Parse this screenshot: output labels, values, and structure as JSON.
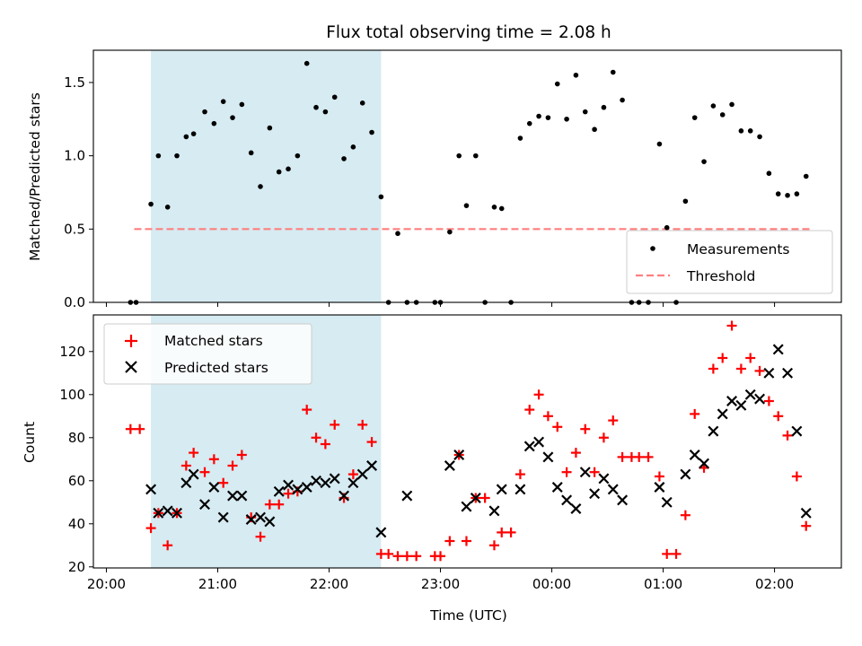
{
  "chart_data": [
    {
      "type": "scatter",
      "title": "Flux total observing time = 2.08 h",
      "ylabel": "Matched/Predicted stars",
      "ylim": [
        0,
        1.72
      ],
      "yticks": [
        0.0,
        0.5,
        1.0,
        1.5
      ],
      "ytick_labels": [
        "0.0",
        "0.5",
        "1.0",
        "1.5"
      ],
      "xlim": [
        "19:53",
        "02:36"
      ],
      "x_axis_type": "time",
      "highlight_span": {
        "x_start": "20:24",
        "x_end": "22:28",
        "color": "#add8e6"
      },
      "threshold": {
        "y": 0.5,
        "x_start": "20:15",
        "x_end": "02:20",
        "color": "#ff7f7f",
        "style": "dashed"
      },
      "legend_position": "bottom-right",
      "legend": [
        {
          "label": "Measurements",
          "marker": "dot",
          "color": "#000000"
        },
        {
          "label": "Threshold",
          "marker": "dashed-line",
          "color": "#ff7f7f"
        }
      ],
      "series": [
        {
          "name": "Measurements",
          "color": "#000000",
          "points": [
            [
              "20:13",
              0.0
            ],
            [
              "20:16",
              0.0
            ],
            [
              "20:24",
              0.67
            ],
            [
              "20:28",
              1.0
            ],
            [
              "20:33",
              0.65
            ],
            [
              "20:38",
              1.0
            ],
            [
              "20:43",
              1.13
            ],
            [
              "20:47",
              1.15
            ],
            [
              "20:53",
              1.3
            ],
            [
              "20:58",
              1.22
            ],
            [
              "21:03",
              1.37
            ],
            [
              "21:08",
              1.26
            ],
            [
              "21:13",
              1.35
            ],
            [
              "21:18",
              1.02
            ],
            [
              "21:23",
              0.79
            ],
            [
              "21:28",
              1.19
            ],
            [
              "21:33",
              0.89
            ],
            [
              "21:38",
              0.91
            ],
            [
              "21:43",
              1.0
            ],
            [
              "21:48",
              1.63
            ],
            [
              "21:53",
              1.33
            ],
            [
              "21:58",
              1.3
            ],
            [
              "22:03",
              1.4
            ],
            [
              "22:08",
              0.98
            ],
            [
              "22:13",
              1.06
            ],
            [
              "22:18",
              1.36
            ],
            [
              "22:23",
              1.16
            ],
            [
              "22:28",
              0.72
            ],
            [
              "22:32",
              0.0
            ],
            [
              "22:37",
              0.47
            ],
            [
              "22:42",
              0.0
            ],
            [
              "22:47",
              0.0
            ],
            [
              "22:57",
              0.0
            ],
            [
              "23:00",
              0.0
            ],
            [
              "23:05",
              0.48
            ],
            [
              "23:10",
              1.0
            ],
            [
              "23:14",
              0.66
            ],
            [
              "23:19",
              1.0
            ],
            [
              "23:24",
              0.0
            ],
            [
              "23:29",
              0.65
            ],
            [
              "23:33",
              0.64
            ],
            [
              "23:38",
              0.0
            ],
            [
              "23:43",
              1.12
            ],
            [
              "23:48",
              1.22
            ],
            [
              "23:53",
              1.27
            ],
            [
              "23:58",
              1.26
            ],
            [
              "00:03",
              1.49
            ],
            [
              "00:08",
              1.25
            ],
            [
              "00:13",
              1.55
            ],
            [
              "00:18",
              1.3
            ],
            [
              "00:23",
              1.18
            ],
            [
              "00:28",
              1.33
            ],
            [
              "00:33",
              1.57
            ],
            [
              "00:38",
              1.38
            ],
            [
              "00:43",
              0.0
            ],
            [
              "00:47",
              0.0
            ],
            [
              "00:52",
              0.0
            ],
            [
              "00:58",
              1.08
            ],
            [
              "01:02",
              0.51
            ],
            [
              "01:07",
              0.0
            ],
            [
              "01:12",
              0.69
            ],
            [
              "01:17",
              1.26
            ],
            [
              "01:22",
              0.96
            ],
            [
              "01:27",
              1.34
            ],
            [
              "01:32",
              1.28
            ],
            [
              "01:37",
              1.35
            ],
            [
              "01:42",
              1.17
            ],
            [
              "01:47",
              1.17
            ],
            [
              "01:52",
              1.13
            ],
            [
              "01:57",
              0.88
            ],
            [
              "02:02",
              0.74
            ],
            [
              "02:07",
              0.73
            ],
            [
              "02:12",
              0.74
            ],
            [
              "02:17",
              0.86
            ]
          ]
        }
      ]
    },
    {
      "type": "scatter",
      "xlabel": "Time (UTC)",
      "ylabel": "Count",
      "ylim": [
        19.5,
        137
      ],
      "yticks": [
        20,
        40,
        60,
        80,
        100,
        120
      ],
      "ytick_labels": [
        "20",
        "40",
        "60",
        "80",
        "100",
        "120"
      ],
      "xlim": [
        "19:53",
        "02:36"
      ],
      "x_axis_type": "time",
      "xticks": [
        "20:00",
        "21:00",
        "22:00",
        "23:00",
        "00:00",
        "01:00",
        "02:00"
      ],
      "xtick_labels": [
        "20:00",
        "21:00",
        "22:00",
        "23:00",
        "00:00",
        "01:00",
        "02:00"
      ],
      "highlight_span": {
        "x_start": "20:24",
        "x_end": "22:28",
        "color": "#add8e6"
      },
      "legend_position": "top-left",
      "legend": [
        {
          "label": "Matched stars",
          "marker": "plus",
          "color": "#ff0000"
        },
        {
          "label": "Predicted stars",
          "marker": "x",
          "color": "#000000"
        }
      ],
      "series": [
        {
          "name": "Matched stars",
          "color": "#ff0000",
          "marker": "plus",
          "points": [
            [
              "20:13",
              84
            ],
            [
              "20:18",
              84
            ],
            [
              "20:24",
              38
            ],
            [
              "20:28",
              45
            ],
            [
              "20:33",
              30
            ],
            [
              "20:38",
              45
            ],
            [
              "20:43",
              67
            ],
            [
              "20:47",
              73
            ],
            [
              "20:53",
              64
            ],
            [
              "20:58",
              70
            ],
            [
              "21:03",
              59
            ],
            [
              "21:08",
              67
            ],
            [
              "21:13",
              72
            ],
            [
              "21:18",
              43
            ],
            [
              "21:23",
              34
            ],
            [
              "21:28",
              49
            ],
            [
              "21:33",
              49
            ],
            [
              "21:38",
              54
            ],
            [
              "21:43",
              55
            ],
            [
              "21:48",
              93
            ],
            [
              "21:53",
              80
            ],
            [
              "21:58",
              77
            ],
            [
              "22:03",
              86
            ],
            [
              "22:08",
              52
            ],
            [
              "22:13",
              63
            ],
            [
              "22:18",
              86
            ],
            [
              "22:23",
              78
            ],
            [
              "22:28",
              26
            ],
            [
              "22:32",
              26
            ],
            [
              "22:37",
              25
            ],
            [
              "22:42",
              25
            ],
            [
              "22:47",
              25
            ],
            [
              "22:57",
              25
            ],
            [
              "23:00",
              25
            ],
            [
              "23:05",
              32
            ],
            [
              "23:10",
              72
            ],
            [
              "23:14",
              32
            ],
            [
              "23:19",
              52
            ],
            [
              "23:24",
              52
            ],
            [
              "23:29",
              30
            ],
            [
              "23:33",
              36
            ],
            [
              "23:38",
              36
            ],
            [
              "23:43",
              63
            ],
            [
              "23:48",
              93
            ],
            [
              "23:53",
              100
            ],
            [
              "23:58",
              90
            ],
            [
              "00:03",
              85
            ],
            [
              "00:08",
              64
            ],
            [
              "00:13",
              73
            ],
            [
              "00:18",
              84
            ],
            [
              "00:23",
              64
            ],
            [
              "00:28",
              80
            ],
            [
              "00:33",
              88
            ],
            [
              "00:38",
              71
            ],
            [
              "00:43",
              71
            ],
            [
              "00:47",
              71
            ],
            [
              "00:52",
              71
            ],
            [
              "00:58",
              62
            ],
            [
              "01:02",
              26
            ],
            [
              "01:07",
              26
            ],
            [
              "01:12",
              44
            ],
            [
              "01:17",
              91
            ],
            [
              "01:22",
              66
            ],
            [
              "01:27",
              112
            ],
            [
              "01:32",
              117
            ],
            [
              "01:37",
              132
            ],
            [
              "01:42",
              112
            ],
            [
              "01:47",
              117
            ],
            [
              "01:52",
              111
            ],
            [
              "01:57",
              97
            ],
            [
              "02:02",
              90
            ],
            [
              "02:07",
              81
            ],
            [
              "02:12",
              62
            ],
            [
              "02:17",
              39
            ]
          ]
        },
        {
          "name": "Predicted stars",
          "color": "#000000",
          "marker": "x",
          "points": [
            [
              "20:24",
              56
            ],
            [
              "20:28",
              45
            ],
            [
              "20:33",
              46
            ],
            [
              "20:38",
              45
            ],
            [
              "20:43",
              59
            ],
            [
              "20:47",
              63
            ],
            [
              "20:53",
              49
            ],
            [
              "20:58",
              57
            ],
            [
              "21:03",
              43
            ],
            [
              "21:08",
              53
            ],
            [
              "21:13",
              53
            ],
            [
              "21:18",
              42
            ],
            [
              "21:23",
              43
            ],
            [
              "21:28",
              41
            ],
            [
              "21:33",
              55
            ],
            [
              "21:38",
              58
            ],
            [
              "21:43",
              56
            ],
            [
              "21:48",
              57
            ],
            [
              "21:53",
              60
            ],
            [
              "21:58",
              59
            ],
            [
              "22:03",
              61
            ],
            [
              "22:08",
              53
            ],
            [
              "22:13",
              59
            ],
            [
              "22:18",
              63
            ],
            [
              "22:23",
              67
            ],
            [
              "22:28",
              36
            ],
            [
              "22:42",
              53
            ],
            [
              "23:05",
              67
            ],
            [
              "23:10",
              72
            ],
            [
              "23:14",
              48
            ],
            [
              "23:19",
              52
            ],
            [
              "23:29",
              46
            ],
            [
              "23:33",
              56
            ],
            [
              "23:43",
              56
            ],
            [
              "23:48",
              76
            ],
            [
              "23:53",
              78
            ],
            [
              "23:58",
              71
            ],
            [
              "00:03",
              57
            ],
            [
              "00:08",
              51
            ],
            [
              "00:13",
              47
            ],
            [
              "00:18",
              64
            ],
            [
              "00:23",
              54
            ],
            [
              "00:28",
              61
            ],
            [
              "00:33",
              56
            ],
            [
              "00:38",
              51
            ],
            [
              "00:58",
              57
            ],
            [
              "01:02",
              50
            ],
            [
              "01:12",
              63
            ],
            [
              "01:17",
              72
            ],
            [
              "01:22",
              68
            ],
            [
              "01:27",
              83
            ],
            [
              "01:32",
              91
            ],
            [
              "01:37",
              97
            ],
            [
              "01:42",
              95
            ],
            [
              "01:47",
              100
            ],
            [
              "01:52",
              98
            ],
            [
              "01:57",
              110
            ],
            [
              "02:02",
              121
            ],
            [
              "02:07",
              110
            ],
            [
              "02:12",
              83
            ],
            [
              "02:17",
              45
            ]
          ]
        }
      ]
    }
  ]
}
